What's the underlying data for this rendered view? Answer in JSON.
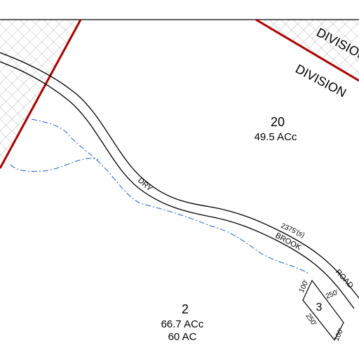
{
  "divisions": [
    "DIVISION",
    "DIVISION"
  ],
  "parcels": [
    {
      "number": "20",
      "area": [
        "49.5 ACc"
      ]
    },
    {
      "number": "2",
      "area": [
        "66.7 ACc",
        "60 AC"
      ]
    },
    {
      "number": "3",
      "dimensions": [
        "100'",
        "250'",
        "250'",
        "100'"
      ]
    }
  ],
  "road": {
    "words": [
      "DRY",
      "BROOK",
      "ROAD"
    ],
    "length": "2375'(s)"
  }
}
